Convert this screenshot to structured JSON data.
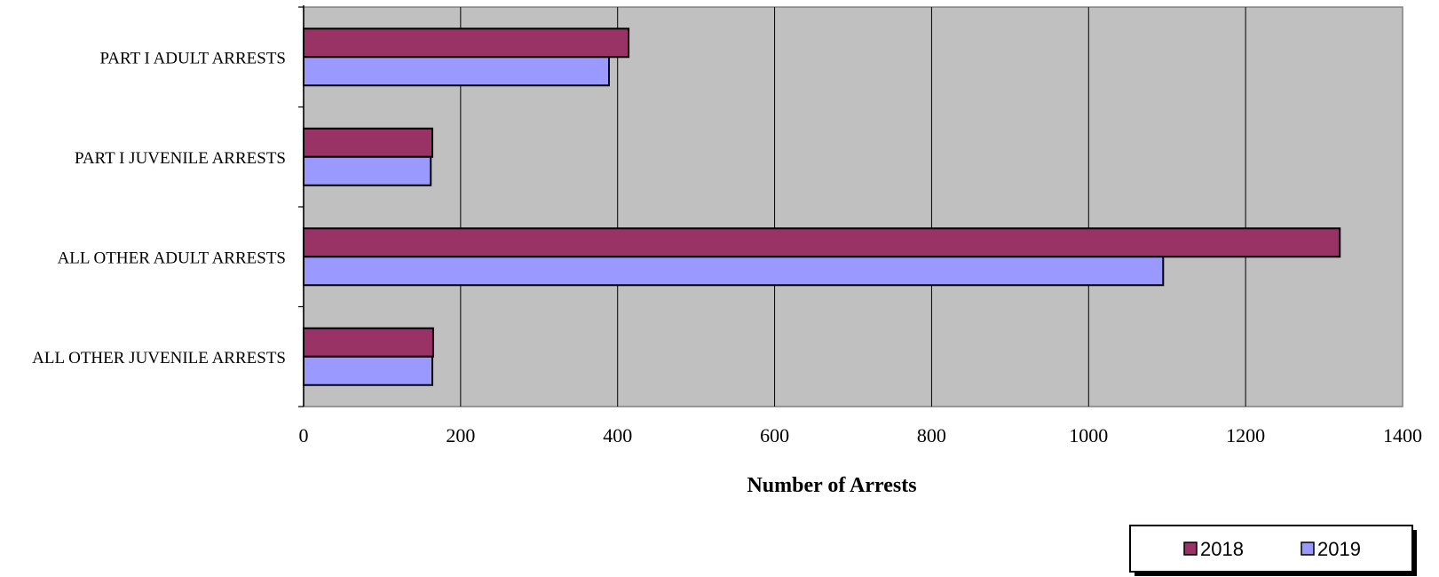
{
  "chart_data": {
    "type": "bar",
    "orientation": "horizontal",
    "categories": [
      "PART I ADULT ARRESTS",
      "PART I JUVENILE ARRESTS",
      "ALL OTHER ADULT ARRESTS",
      "ALL OTHER JUVENILE ARRESTS"
    ],
    "series": [
      {
        "name": "2018",
        "color": "#993366",
        "values": [
          414,
          164,
          1320,
          165
        ]
      },
      {
        "name": "2019",
        "color": "#9999FF",
        "values": [
          389,
          162,
          1095,
          164
        ]
      }
    ],
    "xlabel": "Number of Arrests",
    "ylabel": "",
    "xlim": [
      0,
      1400
    ],
    "xticks": [
      "0",
      "200",
      "400",
      "600",
      "800",
      "1000",
      "1200",
      "1400"
    ],
    "grid": true,
    "plot_background": "#C0C0C0",
    "legend_position": "bottom-right"
  }
}
